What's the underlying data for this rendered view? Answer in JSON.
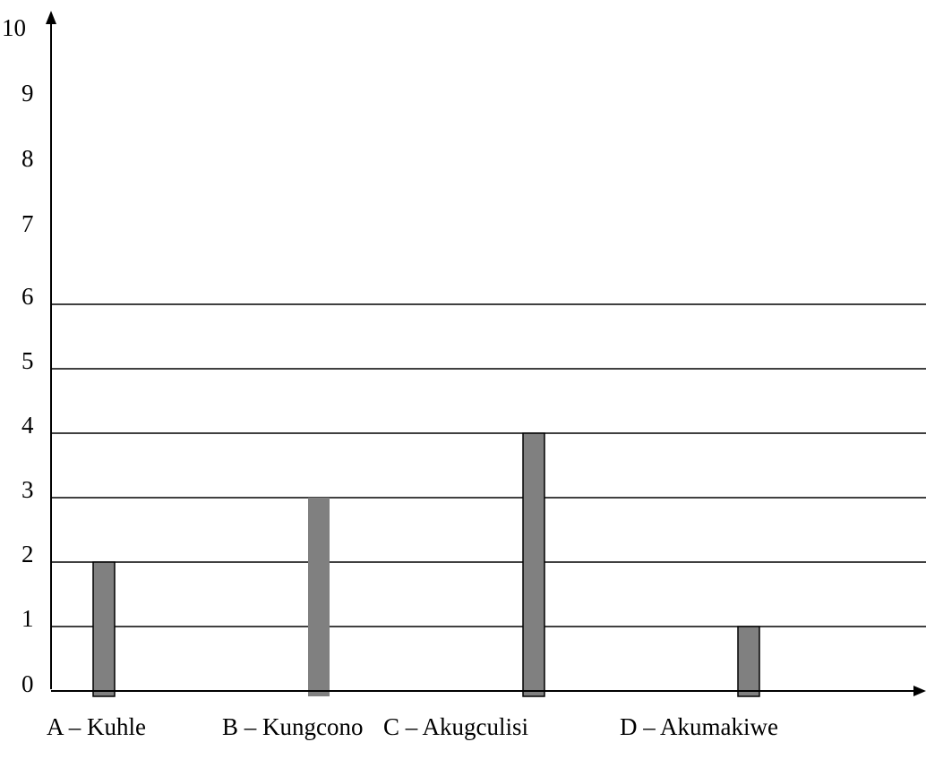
{
  "chart_data": {
    "type": "bar",
    "title": "",
    "xlabel": "",
    "ylabel": "",
    "categories": [
      "A – Kuhle",
      "B – Kungcono",
      "C – Akugculisi",
      "D – Akumakiwe"
    ],
    "values": [
      2,
      3,
      4,
      1
    ],
    "ylim": [
      0,
      10
    ],
    "yticks": [
      "0",
      "1",
      "2",
      "3",
      "4",
      "5",
      "6",
      "7",
      "8",
      "9",
      "10"
    ],
    "gridlines": [
      1,
      2,
      3,
      4,
      5,
      6
    ],
    "grid": "horizontal, values 1 to 6",
    "legend": "none",
    "colors": {
      "bar": "#808080",
      "bar_outline": "#000000",
      "axis": "#000000",
      "grid": "#000000"
    },
    "bar_outlined": [
      true,
      false,
      true,
      true
    ]
  }
}
